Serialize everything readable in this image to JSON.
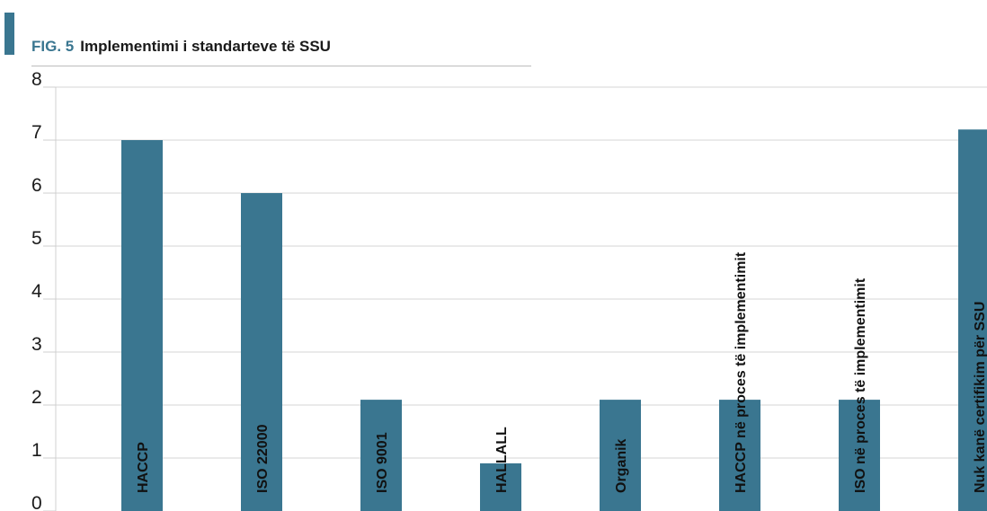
{
  "figure": {
    "fig_label": "FIG. 5",
    "title": "Implementimi i standarteve të SSU"
  },
  "colors": {
    "bar": "#3a7690",
    "accent": "#3a7690",
    "grid": "#e3e3e3"
  },
  "chart_data": {
    "type": "bar",
    "title": "Implementimi i standarteve të SSU",
    "xlabel": "",
    "ylabel": "",
    "ylim": [
      0,
      8
    ],
    "yticks": [
      0,
      1,
      2,
      3,
      4,
      5,
      6,
      7,
      8
    ],
    "grid": true,
    "categories": [
      "HACCP",
      "ISO 22000",
      "ISO 9001",
      "HALLALL",
      "Organik",
      "HACCP në proces të implementimit",
      "ISO në proces të implementimit",
      "Nuk kanë certifikim për SSU"
    ],
    "values": [
      7,
      6,
      2.1,
      0.9,
      2.1,
      2.1,
      2.1,
      7.2
    ]
  }
}
